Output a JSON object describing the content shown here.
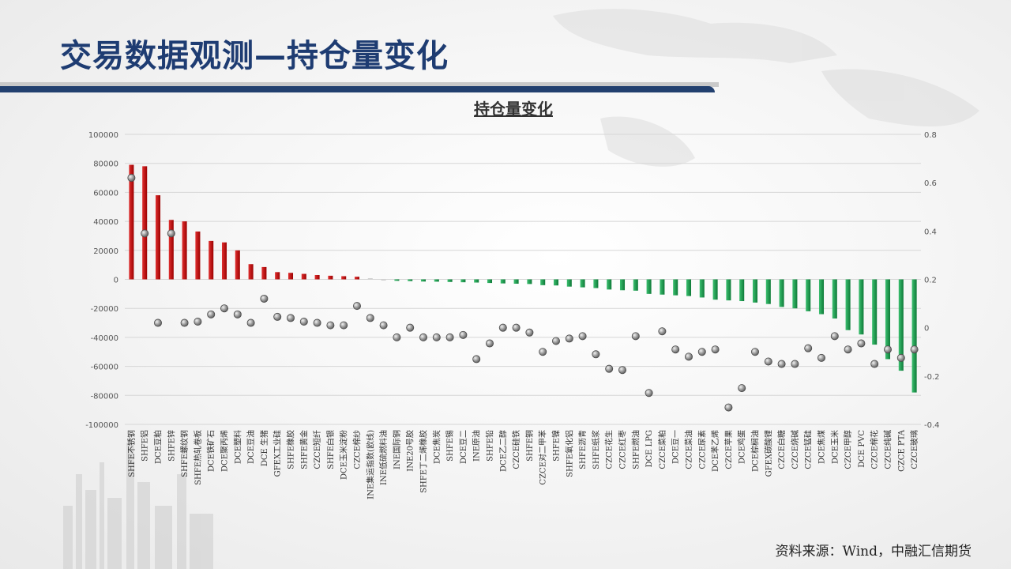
{
  "slide": {
    "title": "交易数据观测—持仓量变化",
    "source": "资料来源：Wind，中融汇信期货"
  },
  "colors": {
    "positive": "#c00000",
    "negative": "#1f9a4c",
    "neutral": "#cccccc",
    "marker": "#8a8a8a",
    "title": "#1e3c72"
  },
  "chart_data": {
    "type": "bar",
    "title": "持仓量变化",
    "categories": [
      "SHFE不锈钢",
      "SHFE铝",
      "DCE豆粕",
      "SHFE锌",
      "SHFE螺纹钢",
      "SHFE热轧卷板",
      "DCE铁矿石",
      "DCE聚丙烯",
      "DCE塑料",
      "DCE豆油",
      "DCE 生猪",
      "GFEX工业硅",
      "SHFE橡胶",
      "SHFE黄金",
      "CZCE短纤",
      "SHFE白银",
      "DCE玉米淀粉",
      "CZCE棉纱",
      "INE集运指数(欧线)",
      "INE低硫燃料油",
      "INE国际铜",
      "INE20号胶",
      "SHFE丁二烯橡胶",
      "DCE焦炭",
      "SHFE锡",
      "DCE豆二",
      "INE原油",
      "SHFE铅",
      "DCE乙二醇",
      "CZCE硅铁",
      "SHFE铜",
      "CZCE对二甲苯",
      "SHFE镍",
      "SHFE氧化铝",
      "SHFE沥青",
      "SHFE纸浆",
      "CZCE花生",
      "CZCE红枣",
      "SHFE燃油",
      "DCE LPG",
      "CZCE菜粕",
      "DCE豆一",
      "CZCE菜油",
      "CZCE尿素",
      "DCE苯乙烯",
      "CZCE苹果",
      "DCE鸡蛋",
      "DCE棕榈油",
      "GFEX碳酸锂",
      "CZCE白糖",
      "CZCE烧碱",
      "CZCE锰硅",
      "DCE焦煤",
      "DCE玉米",
      "CZCE甲醇",
      "DCE PVC",
      "CZCE棉花",
      "CZCE纯碱",
      "CZCE PTA",
      "CZCE玻璃"
    ],
    "bars": {
      "name": "",
      "axis": "left",
      "ylim": [
        -100000,
        100000
      ],
      "ticks": [
        -100000,
        -80000,
        -60000,
        -40000,
        -20000,
        0,
        20000,
        40000,
        60000,
        80000,
        100000
      ],
      "values": [
        79000,
        78000,
        58000,
        41000,
        40000,
        33000,
        26500,
        25500,
        20000,
        10500,
        8500,
        5000,
        4500,
        3800,
        3000,
        2500,
        2200,
        1800,
        800,
        -800,
        -1000,
        -1200,
        -1500,
        -1600,
        -1800,
        -2000,
        -2200,
        -2500,
        -2800,
        -3000,
        -3200,
        -4000,
        -4200,
        -5000,
        -5500,
        -6000,
        -7000,
        -7500,
        -7800,
        -10000,
        -10500,
        -11000,
        -11500,
        -12500,
        -14000,
        -14500,
        -15000,
        -16000,
        -17000,
        -19000,
        -20000,
        -22000,
        -24000,
        -27000,
        -35000,
        -38000,
        -45000,
        -55000,
        -63000,
        -78000
      ]
    },
    "points": {
      "name": "",
      "axis": "right",
      "ylim": [
        -0.4,
        0.8
      ],
      "ticks": [
        -0.4,
        -0.2,
        0,
        0.2,
        0.4,
        0.6,
        0.8
      ],
      "values": [
        0.62,
        0.39,
        0.02,
        0.39,
        0.02,
        0.025,
        0.055,
        0.08,
        0.055,
        0.02,
        0.12,
        0.045,
        0.04,
        0.025,
        0.02,
        0.01,
        0.01,
        0.09,
        0.04,
        0.01,
        -0.04,
        0,
        -0.04,
        -0.04,
        -0.04,
        -0.03,
        -0.13,
        -0.065,
        0,
        0,
        -0.02,
        -0.1,
        -0.055,
        -0.045,
        -0.035,
        -0.11,
        -0.17,
        -0.175,
        -0.035,
        -0.27,
        -0.015,
        -0.09,
        -0.12,
        -0.1,
        -0.09,
        -0.33,
        -0.25,
        -0.1,
        -0.14,
        -0.15,
        -0.15,
        -0.085,
        -0.125,
        -0.035,
        -0.09,
        -0.065,
        -0.15,
        -0.09,
        -0.125,
        -0.09
      ]
    },
    "grid": true,
    "legend": "none"
  }
}
